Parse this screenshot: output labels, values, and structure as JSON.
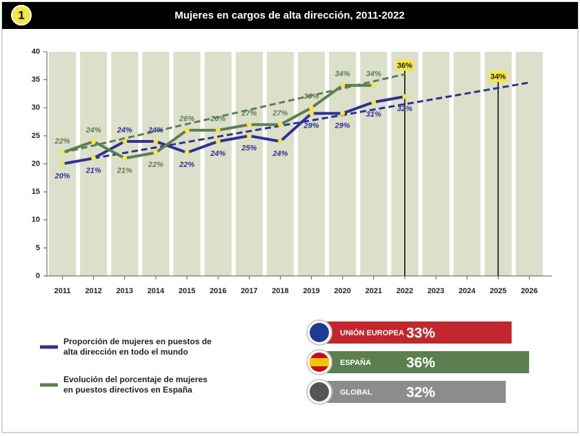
{
  "badge": "1",
  "chart_data": {
    "type": "line",
    "title": "Mujeres en cargos de alta dirección, 2011-2022",
    "xlim": [
      2010.5,
      2026.5
    ],
    "xticks": [
      2011,
      2012,
      2013,
      2014,
      2015,
      2016,
      2017,
      2018,
      2019,
      2020,
      2021,
      2022,
      2023,
      2024,
      2025,
      2026
    ],
    "ylim": [
      0,
      40
    ],
    "yticks": [
      0,
      5,
      10,
      15,
      20,
      25,
      30,
      35,
      40
    ],
    "series": [
      {
        "name": "Proporción de mujeres en puestos de alta dirección en todo el mundo",
        "color": "#2e3192",
        "x": [
          2011,
          2012,
          2013,
          2014,
          2015,
          2016,
          2017,
          2018,
          2019,
          2020,
          2021,
          2022
        ],
        "values": [
          20,
          21,
          24,
          24,
          22,
          24,
          25,
          24,
          29,
          29,
          31,
          32
        ],
        "value_labels": [
          "20%",
          "21%",
          "24%",
          "24%",
          "22%",
          "24%",
          "25%",
          "24%",
          "29%",
          "29%",
          "31%",
          "32%"
        ]
      },
      {
        "name": "Evolución del porcentaje de mujeres en puestos directivos en España",
        "color": "#5b7f4f",
        "x": [
          2011,
          2012,
          2013,
          2014,
          2015,
          2016,
          2017,
          2018,
          2019,
          2020,
          2021
        ],
        "values": [
          22,
          24,
          21,
          22,
          26,
          26,
          27,
          27,
          30,
          34,
          34
        ],
        "value_labels": [
          "22%",
          "24%",
          "21%",
          "22%",
          "26%",
          "26%",
          "27%",
          "27%",
          "30%",
          "34%",
          "34%"
        ]
      }
    ],
    "trend_lines": [
      {
        "color": "#2e3192",
        "x": [
          2012,
          2026
        ],
        "values": [
          21,
          34.5
        ]
      },
      {
        "color": "#5b7f4f",
        "x": [
          2011,
          2022
        ],
        "values": [
          22,
          36
        ]
      }
    ],
    "annotations": [
      {
        "x": 2022,
        "y": 36,
        "label": "36%"
      },
      {
        "x": 2025,
        "y": 34,
        "label": "34%"
      }
    ]
  },
  "summary": [
    {
      "label": "UNIÓN EUROPEA",
      "value": 33,
      "value_label": "33%",
      "color": "#c1272d"
    },
    {
      "label": "ESPAÑA",
      "value": 36,
      "value_label": "36%",
      "color": "#5b7f4f"
    },
    {
      "label": "GLOBAL",
      "value": 32,
      "value_label": "32%",
      "color": "#8a8c8e"
    }
  ]
}
